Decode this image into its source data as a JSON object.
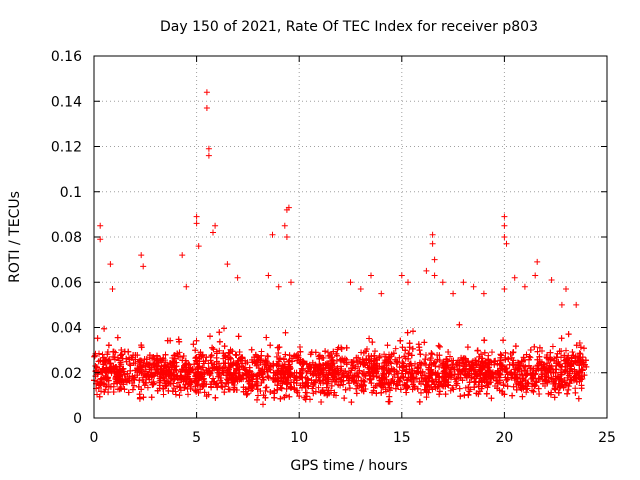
{
  "chart_data": {
    "type": "scatter",
    "title": "Day 150 of 2021, Rate Of TEC Index for receiver p803",
    "xlabel": "GPS time / hours",
    "ylabel": "ROTI / TECUs",
    "xlim": [
      0,
      25
    ],
    "ylim": [
      0,
      0.16
    ],
    "xticks": [
      0,
      5,
      10,
      15,
      20,
      25
    ],
    "xtick_labels": [
      "0",
      "5",
      "10",
      "15",
      "20",
      "25"
    ],
    "yticks": [
      0,
      0.02,
      0.04,
      0.06,
      0.08,
      0.1,
      0.12,
      0.14,
      0.16
    ],
    "ytick_labels": [
      "0",
      "0.02",
      "0.04",
      "0.06",
      "0.08",
      "0.1",
      "0.12",
      "0.14",
      "0.16"
    ],
    "grid": true,
    "marker": "+",
    "color": "#ff0000",
    "data_extent_hours": [
      0,
      24
    ],
    "typical_band": [
      0.005,
      0.04
    ],
    "peaks": [
      {
        "x": 0.3,
        "y": 0.085
      },
      {
        "x": 0.3,
        "y": 0.079
      },
      {
        "x": 0.8,
        "y": 0.068
      },
      {
        "x": 0.9,
        "y": 0.057
      },
      {
        "x": 2.3,
        "y": 0.072
      },
      {
        "x": 2.4,
        "y": 0.067
      },
      {
        "x": 4.3,
        "y": 0.072
      },
      {
        "x": 4.5,
        "y": 0.058
      },
      {
        "x": 5.0,
        "y": 0.089
      },
      {
        "x": 5.0,
        "y": 0.086
      },
      {
        "x": 5.1,
        "y": 0.076
      },
      {
        "x": 5.5,
        "y": 0.144
      },
      {
        "x": 5.5,
        "y": 0.137
      },
      {
        "x": 5.6,
        "y": 0.119
      },
      {
        "x": 5.6,
        "y": 0.116
      },
      {
        "x": 5.9,
        "y": 0.085
      },
      {
        "x": 5.8,
        "y": 0.082
      },
      {
        "x": 6.5,
        "y": 0.068
      },
      {
        "x": 7.0,
        "y": 0.062
      },
      {
        "x": 8.5,
        "y": 0.063
      },
      {
        "x": 8.7,
        "y": 0.081
      },
      {
        "x": 9.0,
        "y": 0.058
      },
      {
        "x": 9.4,
        "y": 0.092
      },
      {
        "x": 9.5,
        "y": 0.093
      },
      {
        "x": 9.3,
        "y": 0.085
      },
      {
        "x": 9.4,
        "y": 0.08
      },
      {
        "x": 9.6,
        "y": 0.06
      },
      {
        "x": 12.5,
        "y": 0.06
      },
      {
        "x": 13.0,
        "y": 0.057
      },
      {
        "x": 13.5,
        "y": 0.063
      },
      {
        "x": 14.0,
        "y": 0.055
      },
      {
        "x": 15.0,
        "y": 0.063
      },
      {
        "x": 15.3,
        "y": 0.06
      },
      {
        "x": 16.2,
        "y": 0.065
      },
      {
        "x": 16.5,
        "y": 0.081
      },
      {
        "x": 16.5,
        "y": 0.077
      },
      {
        "x": 16.6,
        "y": 0.07
      },
      {
        "x": 16.6,
        "y": 0.063
      },
      {
        "x": 17.0,
        "y": 0.06
      },
      {
        "x": 17.5,
        "y": 0.055
      },
      {
        "x": 18.0,
        "y": 0.06
      },
      {
        "x": 18.5,
        "y": 0.058
      },
      {
        "x": 19.0,
        "y": 0.055
      },
      {
        "x": 20.0,
        "y": 0.089
      },
      {
        "x": 20.0,
        "y": 0.085
      },
      {
        "x": 20.0,
        "y": 0.08
      },
      {
        "x": 20.1,
        "y": 0.077
      },
      {
        "x": 20.0,
        "y": 0.057
      },
      {
        "x": 20.5,
        "y": 0.062
      },
      {
        "x": 21.0,
        "y": 0.058
      },
      {
        "x": 21.6,
        "y": 0.069
      },
      {
        "x": 21.5,
        "y": 0.063
      },
      {
        "x": 22.3,
        "y": 0.061
      },
      {
        "x": 22.8,
        "y": 0.05
      },
      {
        "x": 23.0,
        "y": 0.057
      },
      {
        "x": 23.5,
        "y": 0.05
      }
    ]
  }
}
